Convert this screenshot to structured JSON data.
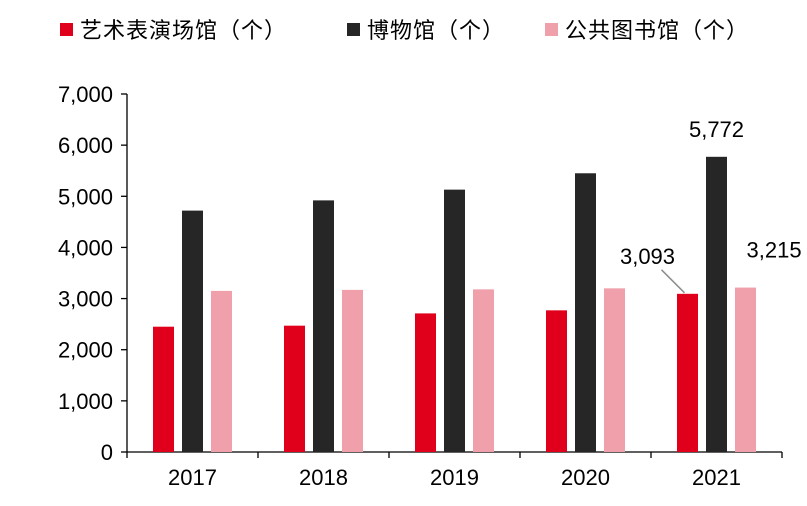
{
  "chart_data": {
    "type": "bar",
    "title": "",
    "xlabel": "",
    "ylabel": "",
    "categories": [
      "2017",
      "2018",
      "2019",
      "2020",
      "2021"
    ],
    "ylim": [
      0,
      7000
    ],
    "yticks": [
      0,
      1000,
      2000,
      3000,
      4000,
      5000,
      6000,
      7000
    ],
    "ytick_labels": [
      "0",
      "1,000",
      "2,000",
      "3,000",
      "4,000",
      "5,000",
      "6,000",
      "7,000"
    ],
    "legend_position": "top",
    "grid": false,
    "series": [
      {
        "name": "艺术表演场馆（个）",
        "color": "#e0001b",
        "values": [
          2450,
          2470,
          2710,
          2770,
          3093
        ]
      },
      {
        "name": "博物馆（个）",
        "color": "#262626",
        "values": [
          4720,
          4920,
          5130,
          5450,
          5772
        ]
      },
      {
        "name": "公共图书馆（个）",
        "color": "#f0a0aa",
        "values": [
          3150,
          3170,
          3180,
          3200,
          3215
        ]
      }
    ],
    "annotations": [
      {
        "series": 0,
        "category": "2021",
        "text": "3,093"
      },
      {
        "series": 1,
        "category": "2021",
        "text": "5,772"
      },
      {
        "series": 2,
        "category": "2021",
        "text": "3,215"
      }
    ]
  }
}
